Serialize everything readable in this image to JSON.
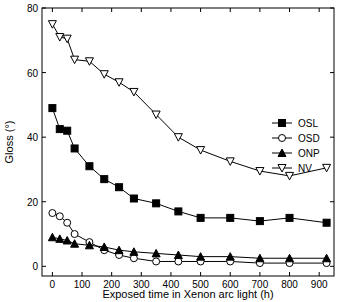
{
  "chart_data": {
    "type": "line",
    "x_label": "Exposed time in Xenon arc light (h)",
    "y_label": "Gloss (°)",
    "x": [
      0,
      25,
      50,
      75,
      125,
      175,
      225,
      275,
      350,
      425,
      500,
      600,
      700,
      800,
      925
    ],
    "series": [
      {
        "name": "OSL",
        "color": "#000000",
        "marker": "square",
        "values": [
          49,
          42.5,
          42,
          36.5,
          31,
          27,
          24.5,
          21,
          19.5,
          17,
          15,
          15,
          14,
          15,
          13.5
        ]
      },
      {
        "name": "OSD",
        "color": "#000000",
        "marker": "circle-open",
        "values": [
          16.5,
          15.5,
          13.5,
          10,
          7.5,
          5,
          3.5,
          2.5,
          1.5,
          1.5,
          1.5,
          1.5,
          1,
          1,
          1
        ]
      },
      {
        "name": "ONP",
        "color": "#000000",
        "marker": "triangle",
        "values": [
          9,
          8.5,
          8,
          7,
          6.5,
          6,
          5,
          4.5,
          4,
          3.5,
          3,
          3,
          2.5,
          2.5,
          2.5
        ]
      },
      {
        "name": "NV",
        "color": "#000000",
        "marker": "triangle-down-open",
        "values": [
          75,
          71,
          70.5,
          64,
          63.5,
          59.5,
          57,
          54,
          47,
          40,
          36,
          32.5,
          29.5,
          28,
          30.5
        ]
      }
    ],
    "xlim": [
      -35,
      950
    ],
    "xticks": [
      0,
      100,
      200,
      300,
      400,
      500,
      600,
      700,
      800,
      900
    ],
    "ylim": [
      -3,
      80
    ],
    "yticks": [
      0,
      20,
      40,
      60,
      80
    ],
    "legend": "upper right"
  }
}
